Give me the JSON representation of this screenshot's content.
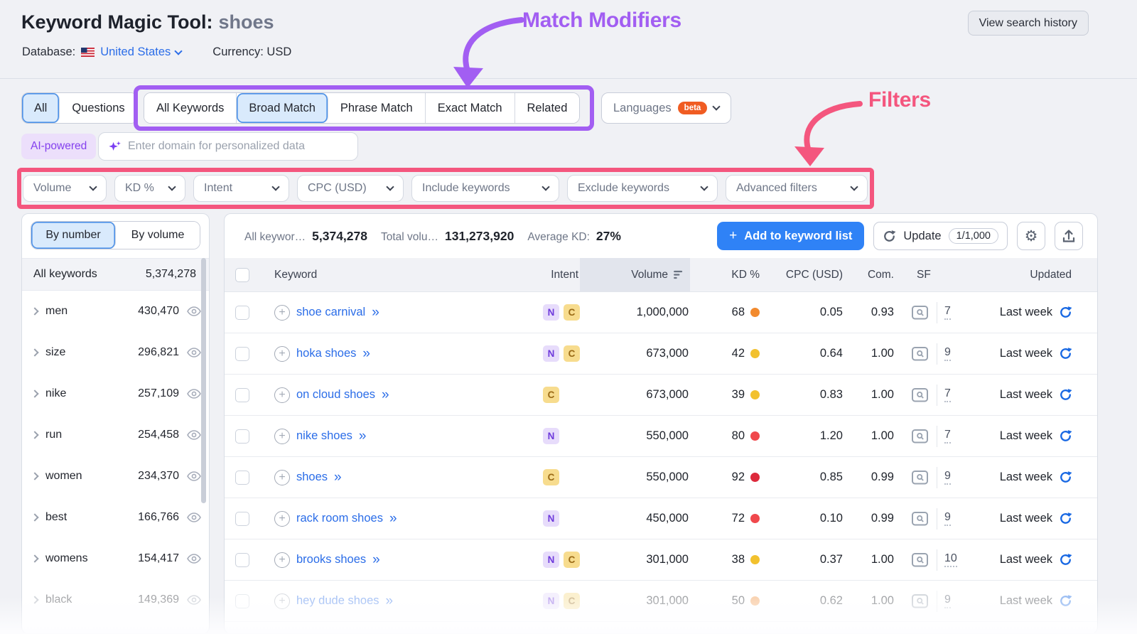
{
  "header": {
    "title": "Keyword Magic Tool:",
    "query": "shoes",
    "database_label": "Database:",
    "database_value": "United States",
    "currency_label": "Currency:",
    "currency_value": "USD",
    "view_history": "View search history"
  },
  "annotations": {
    "match_modifiers": "Match Modifiers",
    "filters": "Filters"
  },
  "scope_tabs": [
    {
      "label": "All",
      "selected": true
    },
    {
      "label": "Questions",
      "selected": false
    }
  ],
  "match_tabs": [
    {
      "label": "All Keywords",
      "selected": false
    },
    {
      "label": "Broad Match",
      "selected": true
    },
    {
      "label": "Phrase Match",
      "selected": false
    },
    {
      "label": "Exact Match",
      "selected": false
    },
    {
      "label": "Related",
      "selected": false
    }
  ],
  "languages": {
    "label": "Languages",
    "badge": "beta"
  },
  "ai_row": {
    "pill": "AI-powered",
    "placeholder": "Enter domain for personalized data"
  },
  "filters": [
    "Volume",
    "KD %",
    "Intent",
    "CPC (USD)",
    "Include keywords",
    "Exclude keywords",
    "Advanced filters"
  ],
  "sidebar": {
    "toggle": [
      {
        "label": "By number",
        "selected": true
      },
      {
        "label": "By volume",
        "selected": false
      }
    ],
    "all_label": "All keywords",
    "all_value": "5,374,278",
    "items": [
      {
        "label": "men",
        "value": "430,470"
      },
      {
        "label": "size",
        "value": "296,821"
      },
      {
        "label": "nike",
        "value": "257,109"
      },
      {
        "label": "run",
        "value": "254,458"
      },
      {
        "label": "women",
        "value": "234,370"
      },
      {
        "label": "best",
        "value": "166,766"
      },
      {
        "label": "womens",
        "value": "154,417"
      },
      {
        "label": "black",
        "value": "149,369",
        "faded": true
      }
    ]
  },
  "stats": {
    "kw_label": "All keywor…",
    "kw_value": "5,374,278",
    "vol_label": "Total volu…",
    "vol_value": "131,273,920",
    "kd_label": "Average KD:",
    "kd_value": "27%"
  },
  "actions": {
    "add_label": "Add to keyword list",
    "update_label": "Update",
    "update_count": "1/1,000"
  },
  "icons": {
    "add_plus": "+",
    "expand_more": "»",
    "gear": "⚙"
  },
  "table": {
    "columns": {
      "keyword": "Keyword",
      "intent": "Intent",
      "volume": "Volume",
      "kd": "KD %",
      "cpc": "CPC (USD)",
      "com": "Com.",
      "sf": "SF",
      "updated": "Updated"
    },
    "rows": [
      {
        "keyword": "shoe carnival",
        "intents": [
          "N",
          "C"
        ],
        "volume": "1,000,000",
        "kd": "68",
        "kd_color": "#f28a2e",
        "cpc": "0.05",
        "com": "0.93",
        "sf": "7",
        "updated": "Last week"
      },
      {
        "keyword": "hoka shoes",
        "intents": [
          "N",
          "C"
        ],
        "volume": "673,000",
        "kd": "42",
        "kd_color": "#f2c12e",
        "cpc": "0.64",
        "com": "1.00",
        "sf": "9",
        "updated": "Last week"
      },
      {
        "keyword": "on cloud shoes",
        "intents": [
          "C"
        ],
        "volume": "673,000",
        "kd": "39",
        "kd_color": "#f2c12e",
        "cpc": "0.83",
        "com": "1.00",
        "sf": "7",
        "updated": "Last week"
      },
      {
        "keyword": "nike shoes",
        "intents": [
          "N"
        ],
        "volume": "550,000",
        "kd": "80",
        "kd_color": "#f0484c",
        "cpc": "1.20",
        "com": "1.00",
        "sf": "7",
        "updated": "Last week"
      },
      {
        "keyword": "shoes",
        "intents": [
          "C"
        ],
        "volume": "550,000",
        "kd": "92",
        "kd_color": "#dd2a3c",
        "cpc": "0.85",
        "com": "0.99",
        "sf": "9",
        "updated": "Last week"
      },
      {
        "keyword": "rack room shoes",
        "intents": [
          "N"
        ],
        "volume": "450,000",
        "kd": "72",
        "kd_color": "#f0484c",
        "cpc": "0.10",
        "com": "0.99",
        "sf": "9",
        "updated": "Last week"
      },
      {
        "keyword": "brooks shoes",
        "intents": [
          "N",
          "C"
        ],
        "volume": "301,000",
        "kd": "38",
        "kd_color": "#f2c12e",
        "cpc": "0.37",
        "com": "1.00",
        "sf": "10",
        "updated": "Last week"
      },
      {
        "keyword": "hey dude shoes",
        "intents": [
          "N",
          "C"
        ],
        "volume": "301,000",
        "kd": "50",
        "kd_color": "#f2994a",
        "cpc": "0.62",
        "com": "1.00",
        "sf": "9",
        "updated": "Last week",
        "faded": true
      }
    ]
  },
  "colors": {
    "accent_blue": "#2b6de8",
    "selected_tab_bg": "#d9eafc",
    "selected_tab_border": "#4b90e8",
    "annotation_purple": "#a25ef2",
    "annotation_pink": "#f4567e",
    "beta_orange": "#f05c22",
    "add_button_blue": "#2f82f6",
    "intent_n_bg": "#e7dcfb",
    "intent_n_text": "#6f3bdc",
    "intent_c_bg": "#f7dc8e",
    "intent_c_text": "#9a6a16",
    "kd_orange": "#f28a2e",
    "kd_yellow": "#f2c12e",
    "kd_red": "#f0484c",
    "kd_dark_red": "#dd2a3c"
  }
}
